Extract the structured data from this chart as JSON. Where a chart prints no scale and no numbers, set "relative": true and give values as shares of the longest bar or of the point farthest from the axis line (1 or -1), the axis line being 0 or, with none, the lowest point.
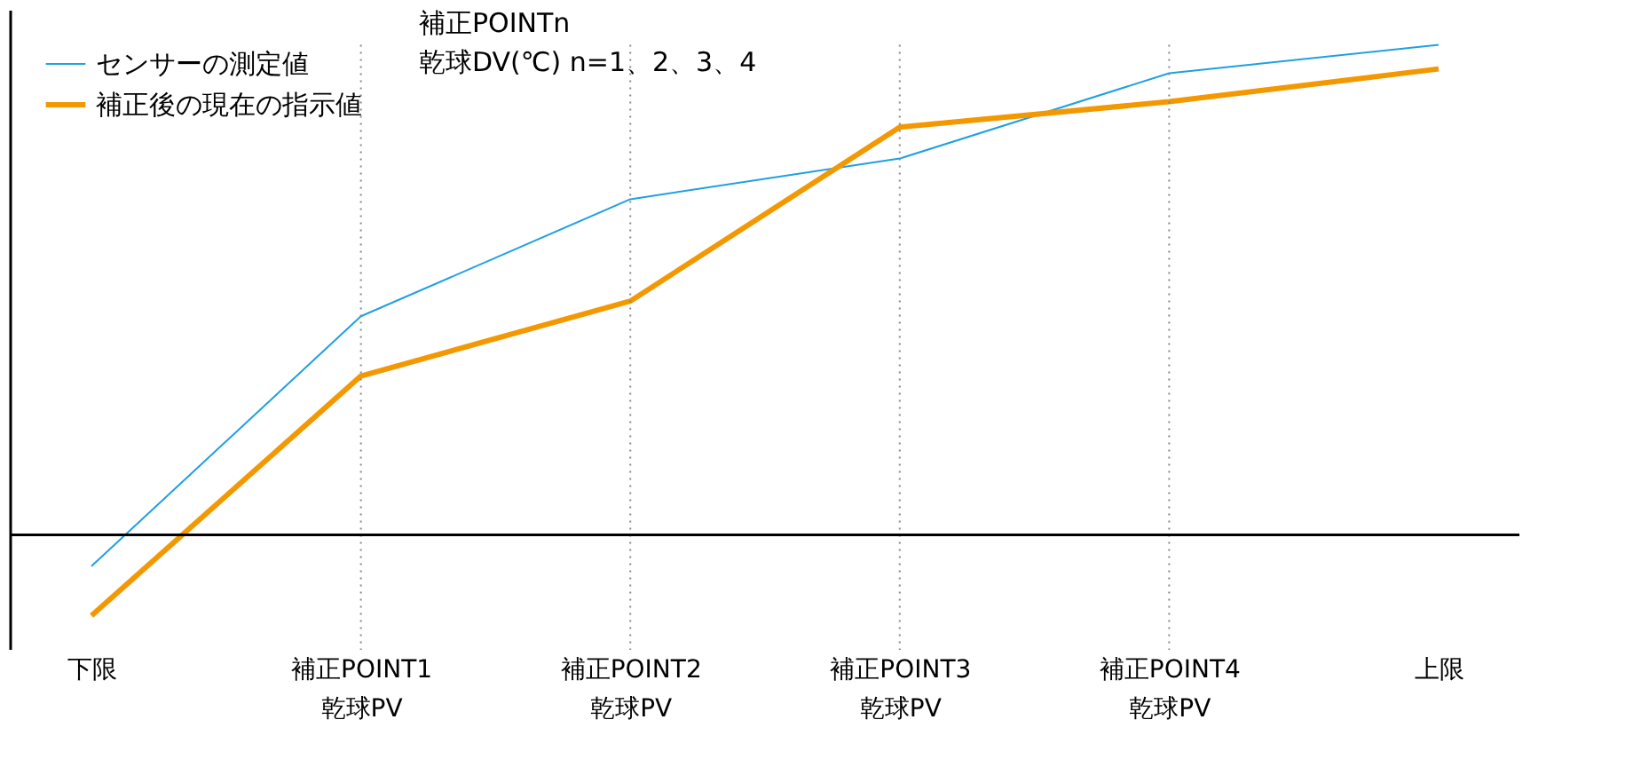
{
  "chart_data": {
    "type": "line",
    "relative": true,
    "categories": [
      "下限",
      "補正POINT1\n乾球PV",
      "補正POINT2\n乾球PV",
      "補正POINT3\n乾球PV",
      "補正POINT4\n乾球PV",
      "上限"
    ],
    "series": [
      {
        "name": "センサーの測定値",
        "color": "#1fa0e0",
        "values": [
          -0.064,
          0.446,
          0.685,
          0.768,
          0.942,
          1
        ]
      },
      {
        "name": "補正後の現在の指示値",
        "color": "#f39800",
        "values": [
          -0.165,
          0.324,
          0.477,
          0.832,
          0.884,
          0.951
        ]
      }
    ],
    "annotations": [
      "補正POINTn\n乾球DV(℃)  n=1、2、3、4"
    ],
    "legend": "top left",
    "grid": "x",
    "marker": "none",
    "line_style": "solid"
  }
}
